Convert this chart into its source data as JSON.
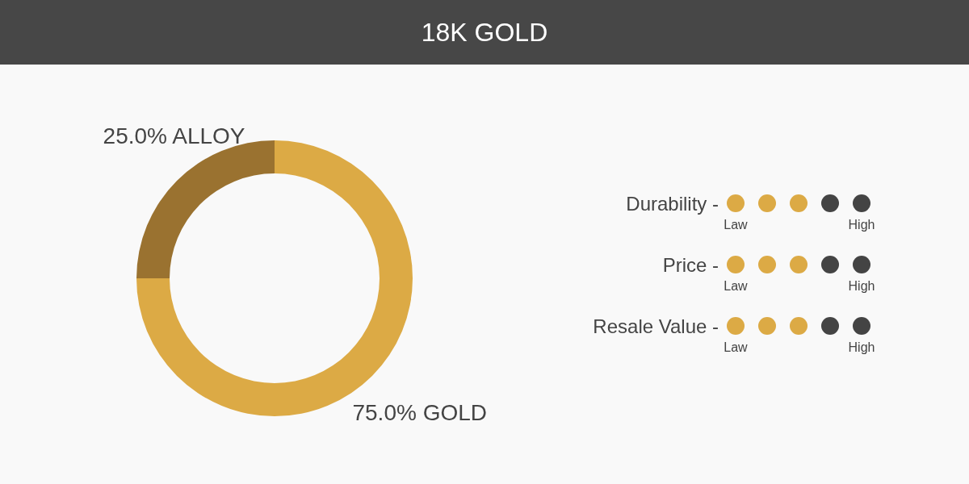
{
  "chart_data": [
    {
      "type": "donut",
      "title": "18K GOLD",
      "categories": [
        "GOLD",
        "ALLOY"
      ],
      "values": [
        75,
        25
      ],
      "colors": [
        "#dcaa45",
        "#9a7230"
      ],
      "value_labels": [
        "75.0%",
        "25.0%"
      ]
    },
    {
      "type": "other",
      "categories": [
        "Durability -",
        "Price -",
        "Resale Value -"
      ],
      "annotations": [
        "Law",
        "High"
      ]
    }
  ]
}
